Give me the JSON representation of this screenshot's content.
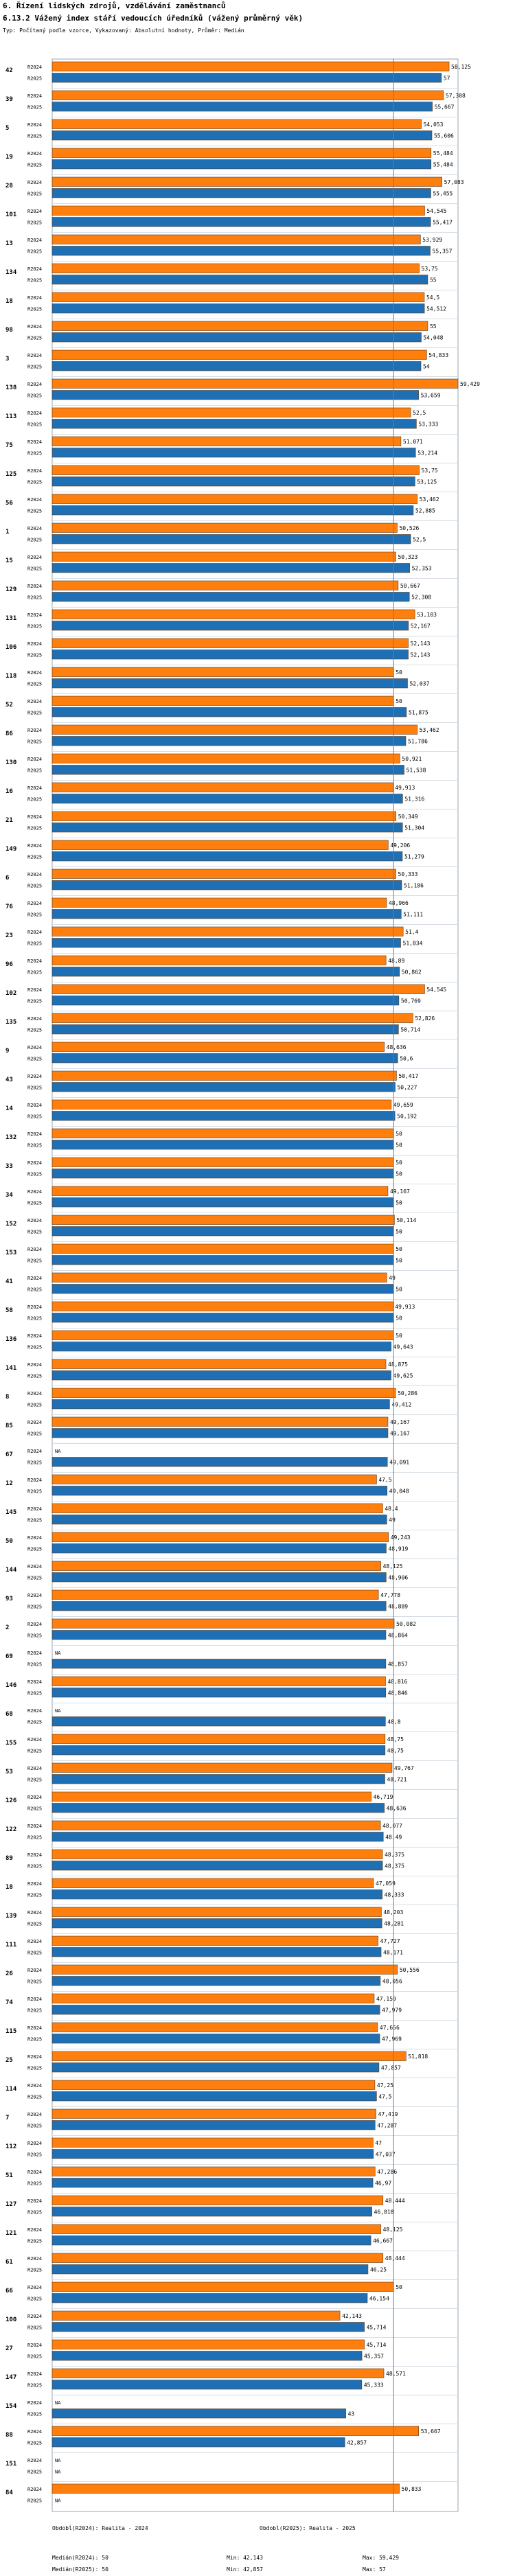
{
  "header": {
    "section": "6. Řízení lidských zdrojů, vzdělávání zaměstnanců",
    "title": "6.13.2 Vážený index stáří vedoucích úředníků (vážený průměrný věk)",
    "subtitle": "Typ: Počítaný podle vzorce, Vykazovaný: Absolutní hodnoty, Průměr: Medián"
  },
  "chart_data": {
    "type": "bar",
    "orientation": "horizontal",
    "series": [
      {
        "name": "R2024",
        "label": "R2024",
        "color": "#ff7f0e"
      },
      {
        "name": "R2025",
        "label": "R2025",
        "color": "#1f6fb4"
      }
    ],
    "xlim": [
      0,
      59.429
    ],
    "reference_line": 50,
    "na_label": "NA",
    "categories": [
      "42",
      "39",
      "5",
      "19",
      "28",
      "101",
      "13",
      "134",
      "18",
      "98",
      "3",
      "138",
      "113",
      "75",
      "125",
      "56",
      "1",
      "15",
      "129",
      "131",
      "106",
      "118",
      "52",
      "86",
      "130",
      "16",
      "21",
      "149",
      "6",
      "76",
      "23",
      "96",
      "102",
      "135",
      "9",
      "43",
      "14",
      "132",
      "33",
      "34",
      "152",
      "153",
      "41",
      "58",
      "136",
      "141",
      "8",
      "85",
      "67",
      "12",
      "145",
      "50",
      "144",
      "93",
      "2",
      "69",
      "146",
      "68",
      "155",
      "53",
      "126",
      "122",
      "89",
      "18",
      "139",
      "111",
      "26",
      "74",
      "115",
      "25",
      "114",
      "7",
      "112",
      "51",
      "127",
      "121",
      "61",
      "66",
      "100",
      "27",
      "147",
      "154",
      "88",
      "151",
      "84"
    ],
    "r2024": [
      58.125,
      57.308,
      54.053,
      55.484,
      57.083,
      54.545,
      53.929,
      53.75,
      54.5,
      55,
      54.833,
      59.429,
      52.5,
      51.071,
      53.75,
      53.462,
      50.526,
      50.323,
      50.667,
      53.103,
      52.143,
      50,
      50,
      53.462,
      50.921,
      49.913,
      50.349,
      49.206,
      50.333,
      48.966,
      51.4,
      48.89,
      54.545,
      52.826,
      48.636,
      50.417,
      49.659,
      50,
      50,
      49.167,
      50.114,
      50,
      49,
      49.913,
      50,
      48.875,
      50.286,
      49.167,
      null,
      47.5,
      48.4,
      49.243,
      48.125,
      47.778,
      50.082,
      null,
      48.816,
      null,
      48.75,
      49.767,
      46.719,
      48.077,
      48.375,
      47.059,
      48.203,
      47.727,
      50.556,
      47.159,
      47.656,
      51.818,
      47.25,
      47.419,
      47,
      47.286,
      48.444,
      48.125,
      48.444,
      50,
      42.143,
      45.714,
      48.571,
      null,
      53.667,
      null,
      50.833
    ],
    "r2025": [
      57,
      55.667,
      55.606,
      55.484,
      55.455,
      55.417,
      55.357,
      55,
      54.512,
      54.048,
      54,
      53.659,
      53.333,
      53.214,
      53.125,
      52.885,
      52.5,
      52.353,
      52.308,
      52.167,
      52.143,
      52.037,
      51.875,
      51.786,
      51.538,
      51.316,
      51.304,
      51.279,
      51.186,
      51.111,
      51.034,
      50.862,
      50.769,
      50.714,
      50.6,
      50.227,
      50.192,
      50,
      50,
      50,
      50,
      50,
      50,
      50,
      49.643,
      49.625,
      49.412,
      49.167,
      49.091,
      49.048,
      49,
      48.919,
      48.906,
      48.889,
      48.864,
      48.857,
      48.846,
      48.8,
      48.75,
      48.721,
      48.636,
      48.49,
      48.375,
      48.333,
      48.281,
      48.171,
      48.056,
      47.979,
      47.969,
      47.857,
      47.5,
      47.287,
      47.037,
      46.97,
      46.818,
      46.667,
      46.25,
      46.154,
      45.714,
      45.357,
      45.333,
      43,
      42.857,
      null,
      null
    ],
    "stats": [
      {
        "label": "Obdobĺ(R2024): Realita - 2024",
        "median": "Medián(R2024): 50",
        "min": "Min: 42,143",
        "max": "Max: 59,429"
      },
      {
        "label": "Obdobĺ(R2025): Realita - 2025",
        "median": "Medián(R2025): 50",
        "min": "Min: 42,857",
        "max": "Max: 57"
      }
    ]
  }
}
